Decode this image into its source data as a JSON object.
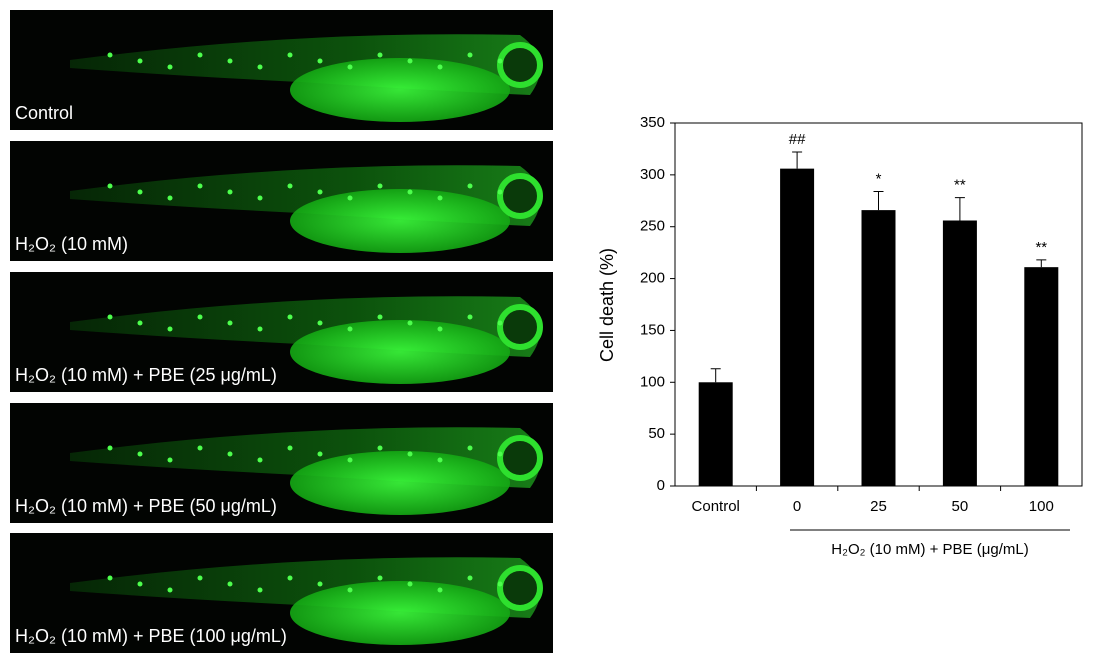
{
  "panels": [
    {
      "label": "Control"
    },
    {
      "label": "H₂O₂ (10 mM)"
    },
    {
      "label": "H₂O₂ (10 mM) + PBE (25 μg/mL)"
    },
    {
      "label": "H₂O₂ (10 mM) + PBE (50 μg/mL)"
    },
    {
      "label": "H₂O₂ (10 mM) + PBE (100 μg/mL)"
    }
  ],
  "chart_data": {
    "type": "bar",
    "y_label": "Cell death (%)",
    "group_label": "H₂O₂  (10 mM) + PBE (μg/mL)",
    "categories": [
      "Control",
      "0",
      "25",
      "50",
      "100"
    ],
    "values": [
      100,
      306,
      266,
      256,
      211
    ],
    "errors": [
      13,
      16,
      18,
      22,
      7
    ],
    "annotations": [
      null,
      "##",
      "*",
      "**",
      "**"
    ],
    "color": "#000000",
    "ylim": [
      0,
      350
    ],
    "yticks": [
      0,
      50,
      100,
      150,
      200,
      250,
      300,
      350
    ]
  }
}
